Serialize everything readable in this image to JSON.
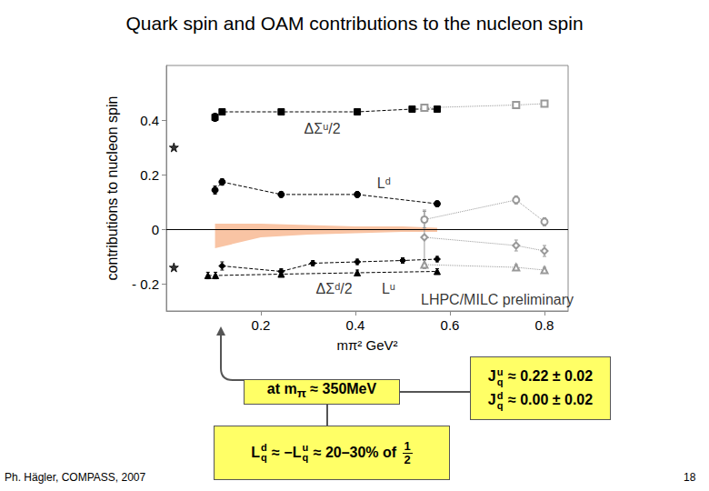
{
  "chart_data": {
    "type": "line",
    "title": "Quark spin and OAM contributions to the nucleon spin",
    "x_label": "mπ² GeV²",
    "y_label": "contributions to nucleon spin",
    "xlim": [
      0,
      0.85
    ],
    "xticks": [
      0.2,
      0.4,
      0.6,
      0.8
    ],
    "ylim": [
      -0.3,
      0.6
    ],
    "yticks": [
      {
        "value": -0.2,
        "label": "- 0.2"
      },
      0,
      0.2,
      0.4
    ],
    "grid": false,
    "reference_lines": [
      0
    ],
    "series": [
      {
        "type": "line",
        "marker": "square",
        "line_style": "dashed",
        "color": "#000000",
        "x": [
          0.103,
          0.118,
          0.243,
          0.404,
          0.52,
          0.573
        ],
        "values": [
          0.41,
          0.43,
          0.43,
          0.43,
          0.44,
          0.44
        ],
        "errors": [
          0.015,
          0.01,
          0.008,
          0.008,
          0.008,
          0.008
        ]
      },
      {
        "type": "line",
        "marker": "circle",
        "line_style": "dashed",
        "color": "#000000",
        "x": [
          0.103,
          0.118,
          0.243,
          0.404,
          0.573
        ],
        "values": [
          0.143,
          0.173,
          0.127,
          0.127,
          0.093
        ],
        "errors": [
          0.015,
          0.012,
          0.01,
          0.01,
          0.01
        ]
      },
      {
        "type": "line",
        "marker": "triangle",
        "line_style": "dashed",
        "color": "#000000",
        "x": [
          0.088,
          0.104,
          0.243,
          0.404,
          0.573
        ],
        "values": [
          -0.17,
          -0.17,
          -0.165,
          -0.16,
          -0.155
        ],
        "errors": [
          0.012,
          0.012,
          0.01,
          0.01,
          0.01
        ]
      },
      {
        "type": "line",
        "marker": "diamond",
        "line_style": "dashed",
        "color": "#000000",
        "x": [
          0.118,
          0.243,
          0.31,
          0.404,
          0.5,
          0.573
        ],
        "values": [
          -0.135,
          -0.155,
          -0.125,
          -0.12,
          -0.115,
          -0.11
        ],
        "errors": [
          0.015,
          0.01,
          0.01,
          0.01,
          0.01,
          0.01
        ]
      },
      {
        "type": "scatter",
        "marker": "star",
        "color": "#000000",
        "x": [
          0.016,
          0.016
        ],
        "values": [
          0.3,
          -0.14
        ]
      },
      {
        "type": "line",
        "marker": "open_square",
        "line_style": "dotted",
        "color": "#999999",
        "x": [
          0.546,
          0.74,
          0.8
        ],
        "values": [
          0.445,
          0.455,
          0.46
        ],
        "errors": [
          0.01,
          0.01,
          0.01
        ]
      },
      {
        "type": "line",
        "marker": "open_circle",
        "line_style": "dotted",
        "color": "#999999",
        "x": [
          0.546,
          0.74,
          0.8
        ],
        "values": [
          0.035,
          0.107,
          0.027
        ],
        "errors": [
          0.03,
          0.015,
          0.015
        ]
      },
      {
        "type": "line",
        "marker": "open_diamond",
        "line_style": "dotted",
        "color": "#999999",
        "x": [
          0.546,
          0.74,
          0.8
        ],
        "values": [
          -0.03,
          -0.06,
          -0.08
        ],
        "errors": [
          0.1,
          0.02,
          0.02
        ]
      },
      {
        "type": "line",
        "marker": "open_triangle",
        "line_style": "dotted",
        "color": "#999999",
        "x": [
          0.546,
          0.74,
          0.8
        ],
        "values": [
          -0.13,
          -0.14,
          -0.15
        ],
        "errors": [
          0.015,
          0.01,
          0.01
        ]
      }
    ],
    "band": {
      "color": "#f9c4a4",
      "x": [
        0.103,
        0.2,
        0.3,
        0.4,
        0.5,
        0.573
      ],
      "lower": [
        -0.07,
        -0.03,
        -0.02,
        -0.015,
        -0.01,
        -0.01
      ],
      "upper": [
        0.02,
        0.02,
        0.015,
        0.01,
        0.01,
        0.005
      ]
    },
    "annotations": [
      {
        "text": "ΔΣᵘ/2",
        "x": 0.33,
        "y": 0.367
      },
      {
        "text": "Lᵈ",
        "x": 0.46,
        "y": 0.167
      },
      {
        "text": "ΔΣᵈ/2",
        "x": 0.355,
        "y": -0.217
      },
      {
        "text": "Lᵘ",
        "x": 0.47,
        "y": -0.217
      },
      {
        "text": "LHPC/MILC preliminary",
        "x": 0.7,
        "y": -0.257
      }
    ]
  },
  "slide": {
    "footer": "Ph. Hägler, COMPASS, 2007",
    "page": "18",
    "boxes": [
      {
        "lines": [
          [
            {
              "t": "at m"
            },
            {
              "sub": "π"
            },
            {
              "t": " ≈ 350MeV"
            }
          ]
        ]
      },
      {
        "lines": [
          [
            {
              "t": "J"
            },
            {
              "subsup": [
                "q",
                "u"
              ]
            },
            {
              "t": " ≈ 0.22 ± 0.02"
            }
          ],
          [
            {
              "t": "J"
            },
            {
              "subsup": [
                "q",
                "d"
              ]
            },
            {
              "t": " ≈ 0.00 ± 0.02"
            }
          ]
        ]
      },
      {
        "lines": [
          [
            {
              "t": "L"
            },
            {
              "subsup": [
                "q",
                "d"
              ]
            },
            {
              "t": " ≈ −L"
            },
            {
              "subsup": [
                "q",
                "u"
              ]
            },
            {
              "t": " ≈ 20–30% of "
            },
            {
              "frac": [
                "1",
                "2"
              ]
            }
          ]
        ]
      }
    ]
  }
}
